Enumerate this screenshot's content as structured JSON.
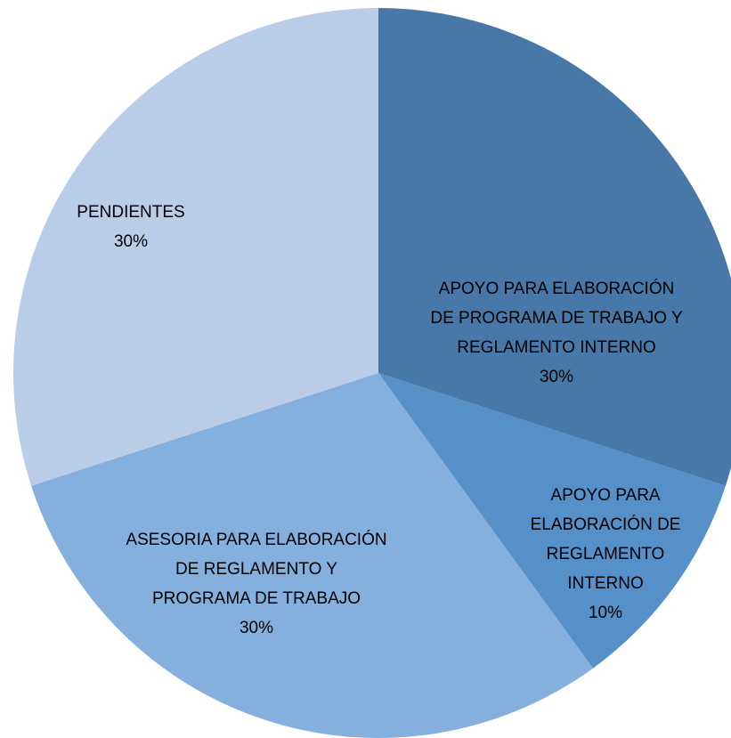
{
  "chart_data": {
    "type": "pie",
    "categories": [
      "APOYO PARA ELABORACIÓN DE PROGRAMA DE TRABAJO Y REGLAMENTO INTERNO",
      "APOYO PARA ELABORACIÓN DE REGLAMENTO INTERNO",
      "ASESORIA PARA ELABORACIÓN DE REGLAMENTO Y PROGRAMA DE TRABAJO",
      "PENDIENTES"
    ],
    "values": [
      30,
      10,
      30,
      30
    ],
    "value_labels": [
      "30%",
      "10%",
      "30%",
      "30%"
    ],
    "colors": [
      "#4878a8",
      "#5590c8",
      "#85afdc",
      "#b9cde8"
    ]
  }
}
